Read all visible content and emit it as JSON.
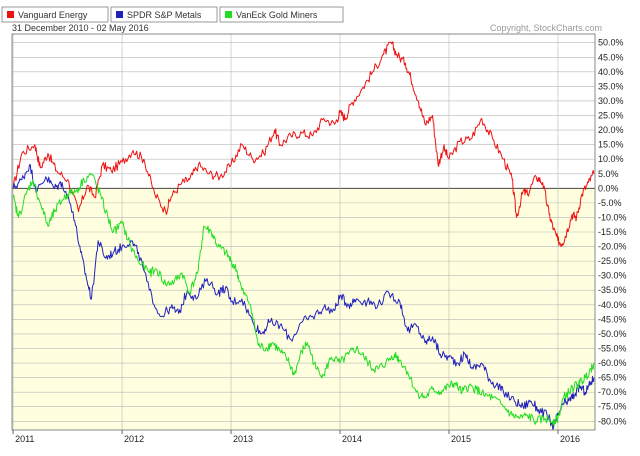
{
  "chart_data": {
    "type": "line",
    "date_range": "31 December 2010 - 02 May 2016",
    "copyright": "Copyright, StockCharts.com",
    "ylim": [
      -83,
      53
    ],
    "y_ticks": [
      50,
      45,
      40,
      35,
      30,
      25,
      20,
      15,
      10,
      5,
      0,
      -5,
      -10,
      -15,
      -20,
      -25,
      -30,
      -35,
      -40,
      -45,
      -50,
      -55,
      -60,
      -65,
      -70,
      -75,
      -80
    ],
    "y_tick_labels": [
      "50.0%",
      "45.0%",
      "40.0%",
      "35.0%",
      "30.0%",
      "25.0%",
      "20.0%",
      "15.0%",
      "10.0%",
      "5.0%",
      "0.0%",
      "-5.0%",
      "-10.0%",
      "-15.0%",
      "-20.0%",
      "-25.0%",
      "-30.0%",
      "-35.0%",
      "-40.0%",
      "-45.0%",
      "-50.0%",
      "-55.0%",
      "-60.0%",
      "-65.0%",
      "-70.0%",
      "-75.0%",
      "-80.0%"
    ],
    "x_ticks": [
      2011,
      2012,
      2013,
      2014,
      2015,
      2016
    ],
    "x_tick_labels": [
      "2011",
      "2012",
      "2013",
      "2014",
      "2015",
      "2016"
    ],
    "xlim": [
      2010.99,
      2016.34
    ],
    "series": [
      {
        "name": "Vanguard Energy",
        "color": "#ee1111",
        "points": [
          [
            2011.0,
            0
          ],
          [
            2011.08,
            12
          ],
          [
            2011.2,
            15
          ],
          [
            2011.25,
            7
          ],
          [
            2011.32,
            12
          ],
          [
            2011.4,
            6
          ],
          [
            2011.5,
            3
          ],
          [
            2011.6,
            -8
          ],
          [
            2011.68,
            1
          ],
          [
            2011.75,
            -3
          ],
          [
            2011.82,
            8
          ],
          [
            2011.9,
            6
          ],
          [
            2012.0,
            9
          ],
          [
            2012.1,
            13
          ],
          [
            2012.2,
            10
          ],
          [
            2012.3,
            -2
          ],
          [
            2012.4,
            -8
          ],
          [
            2012.45,
            -3
          ],
          [
            2012.55,
            2
          ],
          [
            2012.62,
            3
          ],
          [
            2012.7,
            8
          ],
          [
            2012.8,
            5
          ],
          [
            2012.9,
            4
          ],
          [
            2013.0,
            8
          ],
          [
            2013.1,
            15
          ],
          [
            2013.2,
            10
          ],
          [
            2013.3,
            12
          ],
          [
            2013.4,
            20
          ],
          [
            2013.45,
            15
          ],
          [
            2013.55,
            18
          ],
          [
            2013.65,
            19
          ],
          [
            2013.75,
            18
          ],
          [
            2013.85,
            24
          ],
          [
            2013.95,
            22
          ],
          [
            2014.0,
            26
          ],
          [
            2014.05,
            24
          ],
          [
            2014.1,
            29
          ],
          [
            2014.2,
            34
          ],
          [
            2014.3,
            40
          ],
          [
            2014.4,
            46
          ],
          [
            2014.47,
            50
          ],
          [
            2014.52,
            46
          ],
          [
            2014.6,
            43
          ],
          [
            2014.65,
            38
          ],
          [
            2014.72,
            30
          ],
          [
            2014.78,
            22
          ],
          [
            2014.85,
            25
          ],
          [
            2014.9,
            8
          ],
          [
            2014.95,
            14
          ],
          [
            2015.0,
            10
          ],
          [
            2015.1,
            16
          ],
          [
            2015.2,
            17
          ],
          [
            2015.3,
            24
          ],
          [
            2015.4,
            17
          ],
          [
            2015.5,
            10
          ],
          [
            2015.58,
            3
          ],
          [
            2015.62,
            -10
          ],
          [
            2015.68,
            -1
          ],
          [
            2015.72,
            -2
          ],
          [
            2015.8,
            4
          ],
          [
            2015.86,
            2
          ],
          [
            2015.92,
            -9
          ],
          [
            2015.96,
            -14
          ],
          [
            2016.0,
            -18
          ],
          [
            2016.04,
            -19
          ],
          [
            2016.08,
            -15
          ],
          [
            2016.13,
            -9
          ],
          [
            2016.17,
            -10
          ],
          [
            2016.22,
            -2
          ],
          [
            2016.28,
            2
          ],
          [
            2016.33,
            5
          ]
        ]
      },
      {
        "name": "SPDR S&P Metals",
        "color": "#2222bb",
        "points": [
          [
            2011.0,
            0
          ],
          [
            2011.08,
            3
          ],
          [
            2011.15,
            8
          ],
          [
            2011.22,
            -1
          ],
          [
            2011.3,
            4
          ],
          [
            2011.38,
            0
          ],
          [
            2011.45,
            2
          ],
          [
            2011.55,
            -8
          ],
          [
            2011.62,
            -22
          ],
          [
            2011.68,
            -32
          ],
          [
            2011.72,
            -38
          ],
          [
            2011.78,
            -18
          ],
          [
            2011.85,
            -24
          ],
          [
            2011.92,
            -22
          ],
          [
            2012.0,
            -20
          ],
          [
            2012.08,
            -18
          ],
          [
            2012.15,
            -22
          ],
          [
            2012.25,
            -35
          ],
          [
            2012.35,
            -44
          ],
          [
            2012.45,
            -41
          ],
          [
            2012.52,
            -43
          ],
          [
            2012.6,
            -35
          ],
          [
            2012.68,
            -38
          ],
          [
            2012.78,
            -31
          ],
          [
            2012.88,
            -36
          ],
          [
            2012.95,
            -34
          ],
          [
            2013.0,
            -39
          ],
          [
            2013.1,
            -38
          ],
          [
            2013.2,
            -46
          ],
          [
            2013.28,
            -50
          ],
          [
            2013.35,
            -46
          ],
          [
            2013.45,
            -47
          ],
          [
            2013.55,
            -52
          ],
          [
            2013.65,
            -46
          ],
          [
            2013.75,
            -44
          ],
          [
            2013.85,
            -41
          ],
          [
            2013.95,
            -42
          ],
          [
            2014.0,
            -37
          ],
          [
            2014.08,
            -40
          ],
          [
            2014.15,
            -38
          ],
          [
            2014.25,
            -39
          ],
          [
            2014.35,
            -40
          ],
          [
            2014.45,
            -36
          ],
          [
            2014.55,
            -39
          ],
          [
            2014.62,
            -49
          ],
          [
            2014.7,
            -47
          ],
          [
            2014.78,
            -53
          ],
          [
            2014.85,
            -51
          ],
          [
            2014.92,
            -57
          ],
          [
            2015.0,
            -58
          ],
          [
            2015.08,
            -60
          ],
          [
            2015.15,
            -57
          ],
          [
            2015.22,
            -62
          ],
          [
            2015.3,
            -60
          ],
          [
            2015.38,
            -66
          ],
          [
            2015.45,
            -68
          ],
          [
            2015.5,
            -70
          ],
          [
            2015.6,
            -73
          ],
          [
            2015.68,
            -75
          ],
          [
            2015.75,
            -73
          ],
          [
            2015.82,
            -76
          ],
          [
            2015.9,
            -78
          ],
          [
            2015.96,
            -82
          ],
          [
            2016.0,
            -78
          ],
          [
            2016.05,
            -74
          ],
          [
            2016.1,
            -73
          ],
          [
            2016.15,
            -71
          ],
          [
            2016.2,
            -68
          ],
          [
            2016.25,
            -70
          ],
          [
            2016.3,
            -67
          ],
          [
            2016.33,
            -65
          ]
        ]
      },
      {
        "name": "VanEck Gold Miners",
        "color": "#22dd22",
        "points": [
          [
            2011.0,
            -3
          ],
          [
            2011.05,
            -10
          ],
          [
            2011.12,
            -2
          ],
          [
            2011.18,
            3
          ],
          [
            2011.25,
            -5
          ],
          [
            2011.32,
            -13
          ],
          [
            2011.38,
            -8
          ],
          [
            2011.45,
            -4
          ],
          [
            2011.5,
            -2
          ],
          [
            2011.58,
            -1
          ],
          [
            2011.65,
            3
          ],
          [
            2011.72,
            5
          ],
          [
            2011.8,
            -2
          ],
          [
            2011.85,
            -8
          ],
          [
            2011.92,
            -15
          ],
          [
            2012.0,
            -12
          ],
          [
            2012.08,
            -20
          ],
          [
            2012.15,
            -25
          ],
          [
            2012.25,
            -29
          ],
          [
            2012.32,
            -28
          ],
          [
            2012.4,
            -33
          ],
          [
            2012.48,
            -32
          ],
          [
            2012.55,
            -29
          ],
          [
            2012.62,
            -36
          ],
          [
            2012.7,
            -28
          ],
          [
            2012.75,
            -13
          ],
          [
            2012.82,
            -15
          ],
          [
            2012.88,
            -20
          ],
          [
            2012.95,
            -22
          ],
          [
            2013.0,
            -25
          ],
          [
            2013.05,
            -28
          ],
          [
            2013.1,
            -35
          ],
          [
            2013.18,
            -40
          ],
          [
            2013.25,
            -54
          ],
          [
            2013.32,
            -55
          ],
          [
            2013.38,
            -53
          ],
          [
            2013.45,
            -56
          ],
          [
            2013.52,
            -59
          ],
          [
            2013.58,
            -64
          ],
          [
            2013.65,
            -56
          ],
          [
            2013.7,
            -53
          ],
          [
            2013.78,
            -62
          ],
          [
            2013.85,
            -64
          ],
          [
            2013.92,
            -58
          ],
          [
            2014.0,
            -60
          ],
          [
            2014.08,
            -57
          ],
          [
            2014.15,
            -55
          ],
          [
            2014.22,
            -58
          ],
          [
            2014.3,
            -62
          ],
          [
            2014.35,
            -62
          ],
          [
            2014.42,
            -60
          ],
          [
            2014.5,
            -57
          ],
          [
            2014.55,
            -59
          ],
          [
            2014.62,
            -63
          ],
          [
            2014.7,
            -70
          ],
          [
            2014.78,
            -72
          ],
          [
            2014.85,
            -69
          ],
          [
            2014.92,
            -70
          ],
          [
            2015.0,
            -68
          ],
          [
            2015.05,
            -67
          ],
          [
            2015.12,
            -70
          ],
          [
            2015.18,
            -68
          ],
          [
            2015.25,
            -69
          ],
          [
            2015.32,
            -71
          ],
          [
            2015.4,
            -72
          ],
          [
            2015.5,
            -75
          ],
          [
            2015.58,
            -78
          ],
          [
            2015.65,
            -79
          ],
          [
            2015.72,
            -78
          ],
          [
            2015.8,
            -80
          ],
          [
            2015.88,
            -79
          ],
          [
            2015.95,
            -80
          ],
          [
            2016.0,
            -79
          ],
          [
            2016.05,
            -72
          ],
          [
            2016.1,
            -70
          ],
          [
            2016.15,
            -68
          ],
          [
            2016.2,
            -67
          ],
          [
            2016.25,
            -65
          ],
          [
            2016.3,
            -62
          ],
          [
            2016.33,
            -60
          ]
        ]
      }
    ]
  }
}
